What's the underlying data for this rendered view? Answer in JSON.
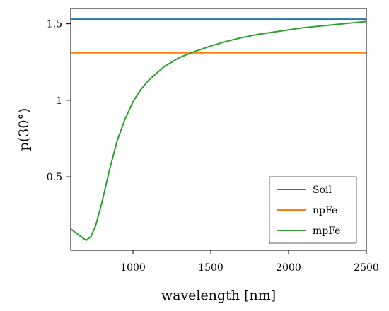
{
  "chart_data": {
    "type": "line",
    "title": "",
    "xlabel": "wavelength [nm]",
    "ylabel": "p(30°)",
    "xlim": [
      600,
      2500
    ],
    "ylim": [
      0.02,
      1.6
    ],
    "xticks": [
      1000,
      1500,
      2000,
      2500
    ],
    "yticks": [
      0.5,
      1,
      1.5
    ],
    "xtick_labels": [
      "1000",
      "1500",
      "2000",
      "2500"
    ],
    "ytick_labels": [
      "0.5",
      "1",
      "1.5"
    ],
    "grid": false,
    "legend_position": "bottom-right",
    "series": [
      {
        "name": "Soil",
        "color": "#1f77b4",
        "x": [
          600,
          2500
        ],
        "y": [
          1.53,
          1.53
        ]
      },
      {
        "name": "npFe",
        "color": "#ff7f0e",
        "x": [
          600,
          2500
        ],
        "y": [
          1.31,
          1.31
        ]
      },
      {
        "name": "mpFe",
        "color": "#2ca02c",
        "x": [
          600,
          650,
          700,
          730,
          760,
          800,
          850,
          900,
          950,
          1000,
          1050,
          1100,
          1200,
          1300,
          1400,
          1500,
          1600,
          1700,
          1800,
          1900,
          2000,
          2100,
          2200,
          2300,
          2400,
          2500
        ],
        "y": [
          0.16,
          0.12,
          0.085,
          0.11,
          0.18,
          0.33,
          0.55,
          0.74,
          0.88,
          0.99,
          1.07,
          1.13,
          1.22,
          1.28,
          1.32,
          1.355,
          1.385,
          1.41,
          1.43,
          1.445,
          1.46,
          1.475,
          1.485,
          1.495,
          1.505,
          1.515
        ]
      }
    ]
  }
}
